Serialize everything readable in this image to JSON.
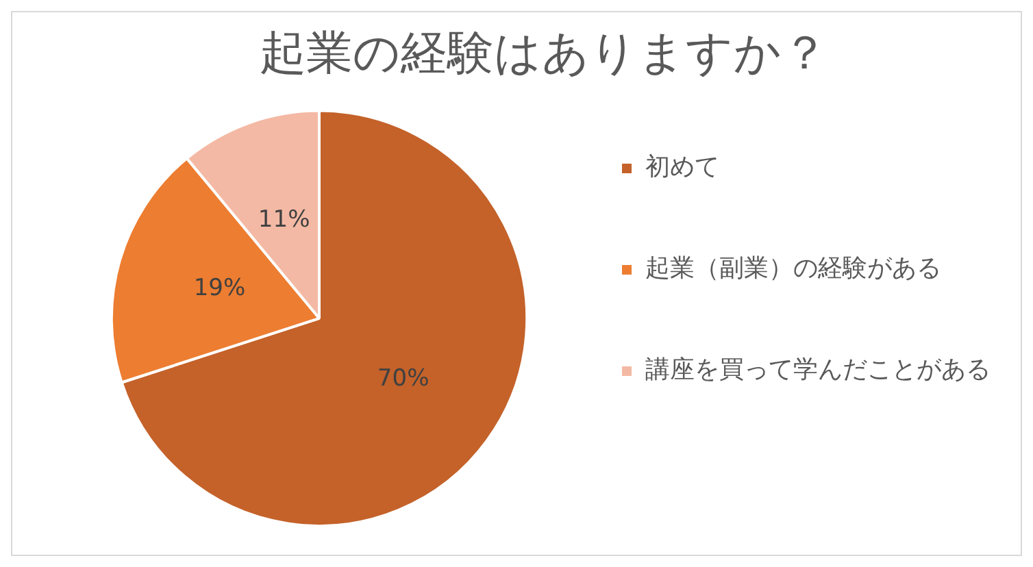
{
  "chart_data": {
    "type": "pie",
    "title": "起業の経験はありますか？",
    "categories": [
      "初めて",
      "起業（副業）の経験がある",
      "講座を買って学んだことがある"
    ],
    "values": [
      70,
      19,
      11
    ],
    "colors": [
      "#c4622a",
      "#ed7d31",
      "#f4b9a4"
    ],
    "value_labels": [
      "70%",
      "19%",
      "11%"
    ],
    "legend": "right"
  }
}
